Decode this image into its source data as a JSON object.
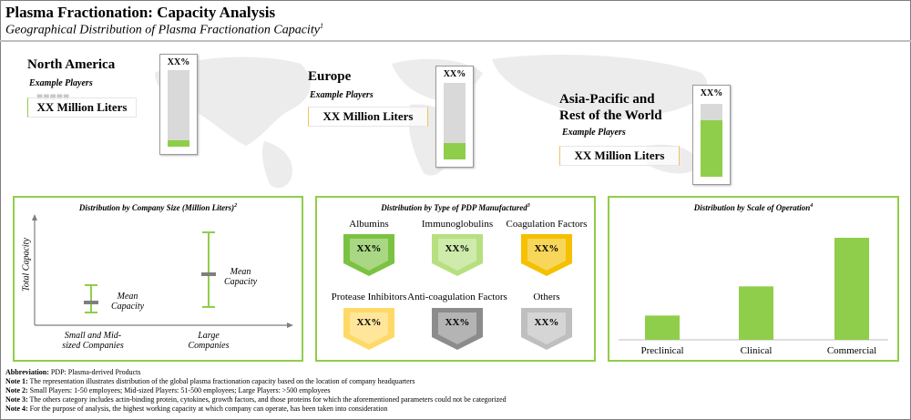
{
  "header": {
    "title": "Plasma Fractionation: Capacity Analysis",
    "subtitle": "Geographical Distribution of Plasma Fractionation Capacity",
    "subtitle_sup": "1"
  },
  "regions": [
    {
      "name": "North America",
      "players_label": "Example Players",
      "liters": "XX Million Liters",
      "bar_label": "XX%",
      "bar_fill_fraction": 0.08
    },
    {
      "name": "Europe",
      "players_label": "Example Players",
      "liters": "XX Million Liters",
      "bar_label": "XX%",
      "bar_fill_fraction": 0.22
    },
    {
      "name_line1": "Asia-Pacific and",
      "name_line2": "Rest of the World",
      "players_label": "Example Players",
      "liters": "XX Million Liters",
      "bar_label": "XX%",
      "bar_fill_fraction": 0.77
    }
  ],
  "panels": {
    "company_size": {
      "title": "Distribution by Company Size (Million Liters)",
      "title_sup": "2",
      "y_label": "Total Capacity",
      "groups": [
        {
          "label_line1": "Small and Mid-",
          "label_line2": "sized Companies",
          "mean_line1": "Mean",
          "mean_line2": "Capacity"
        },
        {
          "label_line1": "Large",
          "label_line2": "Companies",
          "mean_line1": "Mean",
          "mean_line2": "Capacity"
        }
      ]
    },
    "pdp_type": {
      "title": "Distribution by Type of PDP Manufactured",
      "title_sup": "3",
      "items": [
        {
          "label": "Albumins",
          "value": "XX%",
          "color": "#7cc242"
        },
        {
          "label": "Immunoglobulins",
          "value": "XX%",
          "color": "#b6e07f"
        },
        {
          "label": "Coagulation Factors",
          "value": "XX%",
          "color": "#f5c000"
        },
        {
          "label": "Protease Inhibitors",
          "value": "XX%",
          "color": "#ffd966"
        },
        {
          "label": "Anti-coagulation Factors",
          "value": "XX%",
          "color": "#8c8c8c"
        },
        {
          "label": "Others",
          "value": "XX%",
          "color": "#bfbfbf"
        }
      ]
    },
    "scale": {
      "title": "Distribution by Scale of Operation",
      "title_sup": "4",
      "chart_data": {
        "type": "bar",
        "categories": [
          "Preclinical",
          "Clinical",
          "Commercial"
        ],
        "values": [
          1,
          2.2,
          4.2
        ],
        "color": "#8fce4a"
      }
    }
  },
  "notes": [
    {
      "key": "Abbreviation:",
      "text": " PDP: Plasma-derived Products"
    },
    {
      "key": "Note 1:",
      "text": " The representation illustrates distribution of the global plasma fractionation capacity based on the location of company headquarters"
    },
    {
      "key": "Note 2:",
      "text": " Small Players: 1-50 employees; Mid-sized Players: 51-500 employees; Large Players: >500 employees"
    },
    {
      "key": "Note 3:",
      "text": " The others category includes actin-binding protein, cytokines, growth factors, and those proteins for which the aforementioned parameters could not be categorized"
    },
    {
      "key": "Note 4:",
      "text": " For the purpose of analysis, the highest working capacity at which company can operate, has been taken into consideration"
    }
  ]
}
